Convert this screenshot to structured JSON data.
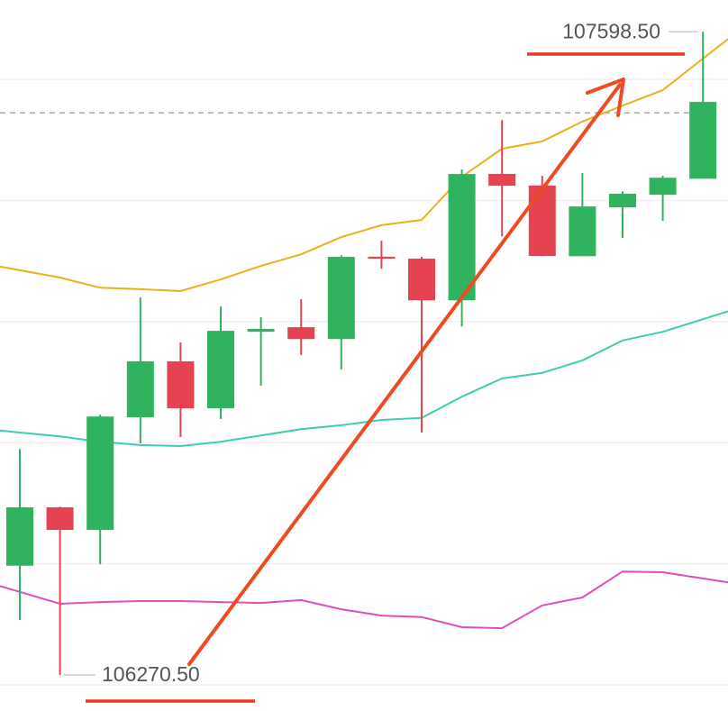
{
  "chart_data": {
    "type": "candlestick",
    "up_color": "#2fb35c",
    "down_color": "#e5434f",
    "open": [
      106496,
      106616.5,
      106570,
      106802.5,
      106918,
      106821,
      106979,
      106988.5,
      106964,
      107134,
      107130,
      107044,
      107305,
      107281,
      107135,
      107236,
      107262,
      107295
    ],
    "high": [
      106737,
      106618,
      106808,
      107050,
      106957,
      107031,
      107009,
      107046,
      107137,
      107167,
      107134,
      107314,
      107416,
      107301,
      107306.6,
      107269,
      107301,
      107598.5
    ],
    "low": [
      106384,
      106270.5,
      106499,
      106748.6,
      106761.6,
      106799,
      106867.6,
      106931,
      106901,
      107109,
      106771,
      106990,
      107176,
      107135,
      107135,
      107172.6,
      107208,
      107295
    ],
    "close": [
      106616.5,
      106570,
      106804,
      106918,
      106821,
      106981,
      106985,
      106964,
      107133.6,
      107130,
      107044,
      107304.7,
      107280.5,
      107135.4,
      107237.7,
      107264,
      107297,
      107453.5
    ],
    "lines": [
      {
        "color": "#e8b21c",
        "values": [
          107106,
          107091,
          107070,
          107067,
          107063,
          107087,
          107115,
          107139,
          107174.5,
          107199,
          107210,
          107299,
          107357,
          107372,
          107413,
          107446,
          107478,
          107543
        ]
      },
      {
        "color": "#3dcdb0",
        "values": [
          106771,
          106763,
          106752,
          106745,
          106743,
          106752,
          106765,
          106778,
          106786,
          106797,
          106801,
          106845,
          106882.5,
          106894,
          106920,
          106961,
          106979,
          107005
        ]
      },
      {
        "color": "#dd4fbf",
        "values": [
          106442,
          106417.5,
          106421,
          106423,
          106423,
          106421,
          106419,
          106425,
          106406,
          106393,
          106390,
          106369,
          106367,
          106414,
          106430.5,
          106484,
          106482.6,
          106469.6
        ]
      }
    ],
    "ylim": [
      106196,
      107664
    ],
    "grid_lines": [
      106250,
      106500,
      106750,
      107000,
      107250,
      107500
    ],
    "current_price": 107431,
    "high_marker": {
      "value": 107598.5,
      "label": "107598.50"
    },
    "low_marker": {
      "value": 106270.5,
      "label": "106270.50"
    }
  }
}
